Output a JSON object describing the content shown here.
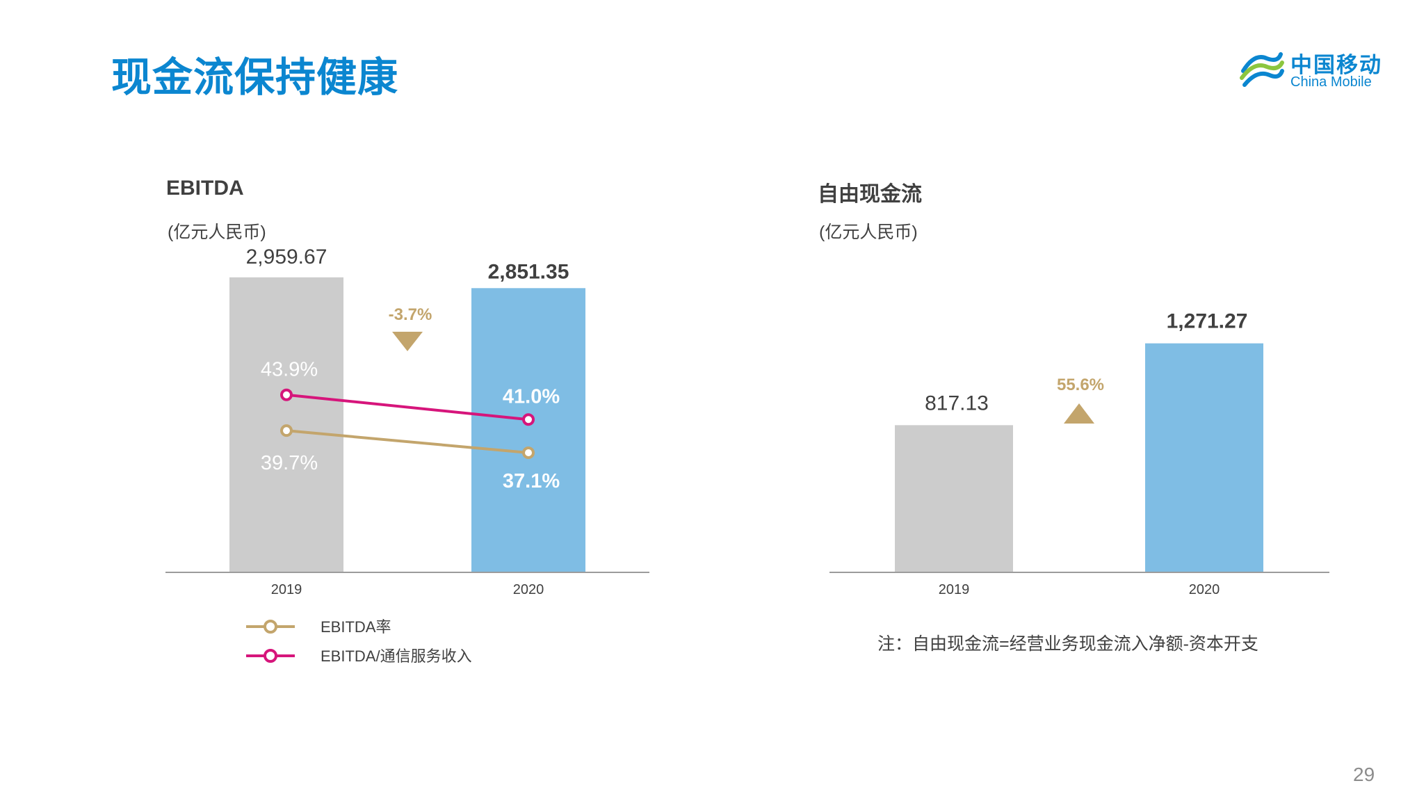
{
  "slide": {
    "title": "现金流保持健康",
    "page_number": "29",
    "logo": {
      "cn": "中国移动",
      "en": "China Mobile",
      "icon": "china-mobile-logo-icon"
    }
  },
  "colors": {
    "title": "#0b86d0",
    "bar_2019": "#cccccc",
    "bar_2020": "#7fbde4",
    "ebitda_margin": "#c3a56c",
    "ebitda_service": "#d6157b",
    "change": "#c3a56c",
    "axis": "#9c9c9c"
  },
  "chart_data": [
    {
      "type": "bar",
      "title": "EBITDA",
      "unit": "(亿元人民币)",
      "categories": [
        "2019",
        "2020"
      ],
      "values": [
        2959.67,
        2851.35
      ],
      "value_labels": [
        "2,959.67",
        "2,851.35"
      ],
      "change": {
        "label": "-3.7%",
        "direction": "down"
      },
      "ylim": [
        0,
        3000
      ],
      "lines": [
        {
          "name": "EBITDA率",
          "values": [
            39.7,
            37.1
          ],
          "labels": [
            "39.7%",
            "37.1%"
          ]
        },
        {
          "name": "EBITDA/通信服务收入",
          "values": [
            43.9,
            41.0
          ],
          "labels": [
            "43.9%",
            "41.0%"
          ]
        }
      ],
      "legend_position": "bottom-left"
    },
    {
      "type": "bar",
      "title": "自由现金流",
      "unit": "(亿元人民币)",
      "categories": [
        "2019",
        "2020"
      ],
      "values": [
        817.13,
        1271.27
      ],
      "value_labels": [
        "817.13",
        "1,271.27"
      ],
      "change": {
        "label": "55.6%",
        "direction": "up"
      },
      "ylim": [
        0,
        1660
      ],
      "note": "注：自由现金流=经营业务现金流入净额-资本开支"
    }
  ]
}
